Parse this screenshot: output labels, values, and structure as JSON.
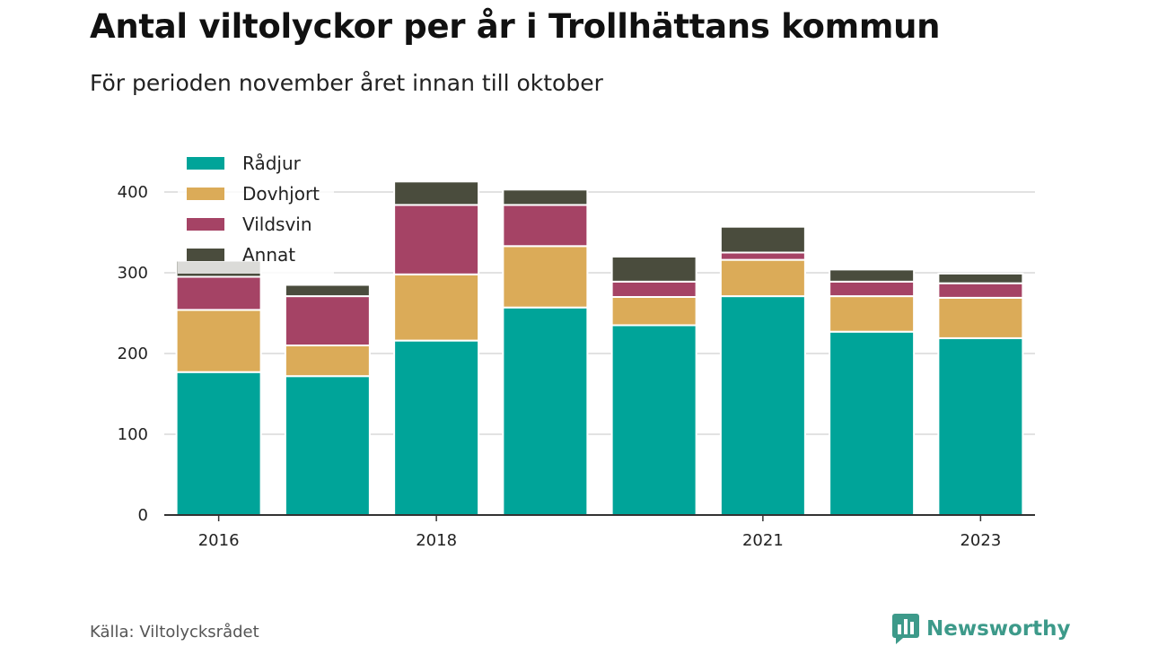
{
  "header": {
    "title": "Antal viltolyckor per år i Trollhättans kommun",
    "subtitle": "För perioden november året innan till oktober"
  },
  "footer": {
    "source": "Källa: Viltolycksrådet",
    "brand": "Newsworthy"
  },
  "colors": {
    "Rådjur": "#00a499",
    "Dovhjort": "#dbab58",
    "Vildsvin": "#a54365",
    "Annat": "#4a4c3d",
    "grid": "#d9d9d9",
    "axis": "#333333",
    "brand": "#3d9a8a"
  },
  "chart_data": {
    "type": "bar",
    "stacked": true,
    "categories": [
      "2016",
      "2017",
      "2018",
      "2019",
      "2020",
      "2021",
      "2022",
      "2023"
    ],
    "x_tick_labels": [
      "2016",
      "",
      "2018",
      "",
      "",
      "2021",
      "",
      "2023"
    ],
    "series": [
      {
        "name": "Rådjur",
        "values": [
          177,
          172,
          216,
          257,
          235,
          271,
          227,
          219
        ]
      },
      {
        "name": "Dovhjort",
        "values": [
          77,
          38,
          82,
          76,
          35,
          45,
          44,
          50
        ]
      },
      {
        "name": "Vildsvin",
        "values": [
          41,
          61,
          86,
          51,
          19,
          9,
          18,
          18
        ]
      },
      {
        "name": "Annat",
        "values": [
          20,
          14,
          29,
          19,
          31,
          32,
          15,
          12
        ]
      }
    ],
    "ylim": [
      0,
      440
    ],
    "yticks": [
      0,
      100,
      200,
      300,
      400
    ],
    "xlabel": "",
    "ylabel": "",
    "grid": true,
    "legend": "top-left"
  }
}
